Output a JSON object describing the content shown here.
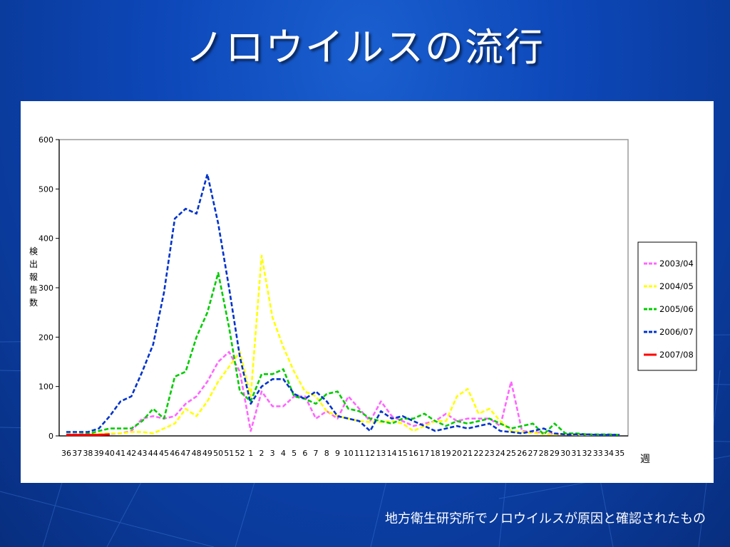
{
  "slide": {
    "title": "ノロウイルスの流行",
    "caption": "地方衛生研究所でノロウイルスが原因と確認されたもの"
  },
  "chart_data": {
    "type": "line",
    "ylabel": "検出報告数",
    "xlabel": "週",
    "ylim": [
      0,
      600
    ],
    "yticks": [
      0,
      100,
      200,
      300,
      400,
      500,
      600
    ],
    "grid": false,
    "legend_position": "right",
    "categories": [
      "36",
      "37",
      "38",
      "39",
      "40",
      "41",
      "42",
      "43",
      "44",
      "45",
      "46",
      "47",
      "48",
      "49",
      "50",
      "51",
      "52",
      "1",
      "2",
      "3",
      "4",
      "5",
      "6",
      "7",
      "8",
      "9",
      "10",
      "11",
      "12",
      "13",
      "14",
      "15",
      "16",
      "17",
      "18",
      "19",
      "20",
      "21",
      "22",
      "23",
      "24",
      "25",
      "26",
      "27",
      "28",
      "29",
      "30",
      "31",
      "32",
      "33",
      "34",
      "35"
    ],
    "series": [
      {
        "name": "2003/04",
        "color": "#ff66ff",
        "values": [
          2,
          2,
          3,
          3,
          4,
          5,
          10,
          35,
          40,
          35,
          40,
          65,
          80,
          110,
          150,
          170,
          130,
          10,
          90,
          60,
          60,
          80,
          80,
          35,
          50,
          35,
          80,
          55,
          30,
          70,
          40,
          30,
          20,
          25,
          30,
          45,
          30,
          35,
          35,
          35,
          20,
          110,
          10,
          8,
          6,
          4,
          3,
          3,
          2,
          2,
          2,
          2
        ]
      },
      {
        "name": "2004/05",
        "color": "#ffff00",
        "values": [
          2,
          2,
          3,
          4,
          5,
          5,
          8,
          8,
          5,
          15,
          25,
          55,
          40,
          70,
          110,
          140,
          170,
          80,
          365,
          240,
          180,
          130,
          90,
          80,
          50,
          40,
          35,
          30,
          28,
          28,
          30,
          25,
          10,
          20,
          30,
          30,
          80,
          95,
          45,
          55,
          30,
          10,
          8,
          6,
          4,
          3,
          3,
          2,
          2,
          2,
          2,
          2
        ]
      },
      {
        "name": "2005/06",
        "color": "#00cc00",
        "values": [
          3,
          3,
          4,
          10,
          15,
          15,
          15,
          30,
          55,
          35,
          120,
          130,
          200,
          250,
          330,
          220,
          90,
          70,
          125,
          125,
          135,
          80,
          75,
          65,
          85,
          90,
          55,
          50,
          35,
          30,
          25,
          35,
          35,
          45,
          30,
          20,
          30,
          25,
          30,
          35,
          25,
          15,
          20,
          25,
          3,
          25,
          5,
          5,
          3,
          3,
          3,
          2
        ]
      },
      {
        "name": "2006/07",
        "color": "#0033cc",
        "values": [
          8,
          8,
          8,
          15,
          40,
          70,
          80,
          130,
          185,
          290,
          440,
          460,
          450,
          530,
          430,
          300,
          160,
          65,
          100,
          115,
          115,
          85,
          75,
          90,
          70,
          40,
          35,
          30,
          10,
          50,
          35,
          40,
          30,
          20,
          10,
          15,
          20,
          15,
          20,
          25,
          10,
          8,
          5,
          10,
          15,
          5,
          3,
          3,
          3,
          2,
          2,
          2
        ]
      },
      {
        "name": "2007/08",
        "color": "#ff0000",
        "values": [
          2,
          2,
          2,
          2,
          3,
          null,
          null,
          null,
          null,
          null,
          null,
          null,
          null,
          null,
          null,
          null,
          null,
          null,
          null,
          null,
          null,
          null,
          null,
          null,
          null,
          null,
          null,
          null,
          null,
          null,
          null,
          null,
          null,
          null,
          null,
          null,
          null,
          null,
          null,
          null,
          null,
          null,
          null,
          null,
          null,
          null,
          null,
          null,
          null,
          null,
          null,
          null
        ]
      }
    ]
  }
}
